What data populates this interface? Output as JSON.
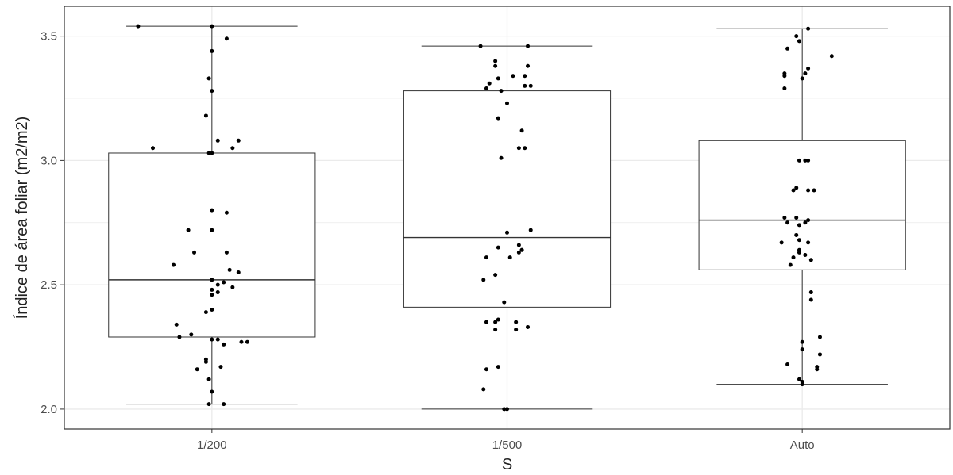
{
  "chart_data": {
    "type": "boxplot",
    "title": "",
    "xlabel": "S",
    "ylabel": "Índice de área foliar (m2/m2)",
    "categories": [
      "1/200",
      "1/500",
      "Auto"
    ],
    "ylim": [
      1.92,
      3.62
    ],
    "yticks": [
      2.0,
      2.5,
      3.0,
      3.5
    ],
    "ytick_labels": [
      "2.0",
      "2.5",
      "3.0",
      "3.5"
    ],
    "grid": true,
    "legend": "none",
    "colors": {
      "box_fill": "#ffffff",
      "box_stroke": "#333333",
      "point": "#000000",
      "grid": "#ebebeb",
      "panel_border": "#333333"
    },
    "boxes": [
      {
        "category": "1/200",
        "whisker_low": 2.02,
        "q1": 2.29,
        "median": 2.52,
        "q3": 3.03,
        "whisker_high": 3.54
      },
      {
        "category": "1/500",
        "whisker_low": 2.0,
        "q1": 2.41,
        "median": 2.69,
        "q3": 3.28,
        "whisker_high": 3.46
      },
      {
        "category": "Auto",
        "whisker_low": 2.1,
        "q1": 2.56,
        "median": 2.76,
        "q3": 3.08,
        "whisker_high": 3.53
      }
    ],
    "points": [
      {
        "category": "1/200",
        "jitter": [
          -0.25,
          0.0,
          0.05,
          0.0,
          -0.01,
          0.0,
          -0.02,
          0.02,
          0.09,
          0.07,
          -0.2,
          0.0,
          -0.01,
          0.0,
          0.05,
          -0.08,
          0.0,
          0.05,
          -0.06,
          -0.13,
          0.06,
          0.09,
          0.0,
          0.04,
          0.02,
          0.07,
          0.0,
          0.02,
          0.0,
          0.0,
          -0.02,
          -0.12,
          -0.07,
          -0.11,
          0.02,
          0.0,
          0.12,
          0.1,
          0.04,
          -0.02,
          -0.02,
          0.03,
          -0.05,
          -0.01,
          0.0,
          -0.01,
          0.04
        ],
        "values": [
          3.54,
          3.54,
          3.49,
          3.44,
          3.33,
          3.28,
          3.18,
          3.08,
          3.08,
          3.05,
          3.05,
          3.03,
          3.03,
          2.8,
          2.79,
          2.72,
          2.72,
          2.63,
          2.63,
          2.58,
          2.56,
          2.55,
          2.52,
          2.51,
          2.5,
          2.49,
          2.48,
          2.47,
          2.46,
          2.4,
          2.39,
          2.34,
          2.3,
          2.29,
          2.28,
          2.28,
          2.27,
          2.27,
          2.26,
          2.2,
          2.19,
          2.17,
          2.16,
          2.12,
          2.07,
          2.02,
          2.02
        ]
      },
      {
        "category": "1/500",
        "jitter": [
          -0.09,
          0.07,
          -0.04,
          -0.04,
          0.07,
          0.06,
          0.02,
          -0.03,
          -0.06,
          0.08,
          0.06,
          -0.07,
          -0.02,
          0.0,
          -0.03,
          0.05,
          0.06,
          0.04,
          -0.02,
          0.08,
          0.0,
          0.04,
          -0.03,
          0.05,
          0.05,
          0.04,
          -0.07,
          0.01,
          -0.04,
          -0.08,
          -0.01,
          -0.03,
          0.03,
          -0.07,
          -0.04,
          0.07,
          0.03,
          -0.04,
          -0.03,
          -0.07,
          -0.08,
          0.0,
          -0.01
        ],
        "values": [
          3.46,
          3.46,
          3.4,
          3.38,
          3.38,
          3.34,
          3.34,
          3.33,
          3.31,
          3.3,
          3.3,
          3.29,
          3.28,
          3.23,
          3.17,
          3.12,
          3.05,
          3.05,
          3.01,
          2.72,
          2.71,
          2.66,
          2.65,
          2.64,
          2.64,
          2.63,
          2.61,
          2.61,
          2.54,
          2.52,
          2.43,
          2.36,
          2.35,
          2.35,
          2.35,
          2.33,
          2.32,
          2.32,
          2.17,
          2.16,
          2.08,
          2.0,
          2.0
        ]
      },
      {
        "category": "Auto",
        "jitter": [
          0.02,
          -0.02,
          -0.01,
          0.1,
          -0.05,
          0.02,
          0.01,
          -0.06,
          -0.06,
          0.0,
          -0.06,
          -0.01,
          0.01,
          0.02,
          0.04,
          -0.02,
          -0.03,
          0.02,
          -0.06,
          -0.02,
          0.02,
          -0.05,
          0.01,
          -0.01,
          -0.02,
          -0.01,
          0.02,
          -0.07,
          -0.01,
          -0.01,
          0.01,
          -0.03,
          0.03,
          -0.04,
          0.03,
          0.03,
          0.06,
          0.0,
          0.0,
          0.06,
          0.05,
          -0.05,
          0.05,
          -0.01,
          0.0,
          0.0
        ],
        "values": [
          3.53,
          3.5,
          3.48,
          3.42,
          3.45,
          3.37,
          3.35,
          3.35,
          3.34,
          3.33,
          3.29,
          3.0,
          3.0,
          3.0,
          2.88,
          2.89,
          2.88,
          2.88,
          2.77,
          2.77,
          2.76,
          2.75,
          2.75,
          2.74,
          2.7,
          2.68,
          2.67,
          2.67,
          2.64,
          2.63,
          2.62,
          2.61,
          2.6,
          2.58,
          2.47,
          2.44,
          2.29,
          2.27,
          2.24,
          2.22,
          2.17,
          2.18,
          2.16,
          2.12,
          2.1,
          2.11
        ]
      }
    ]
  }
}
